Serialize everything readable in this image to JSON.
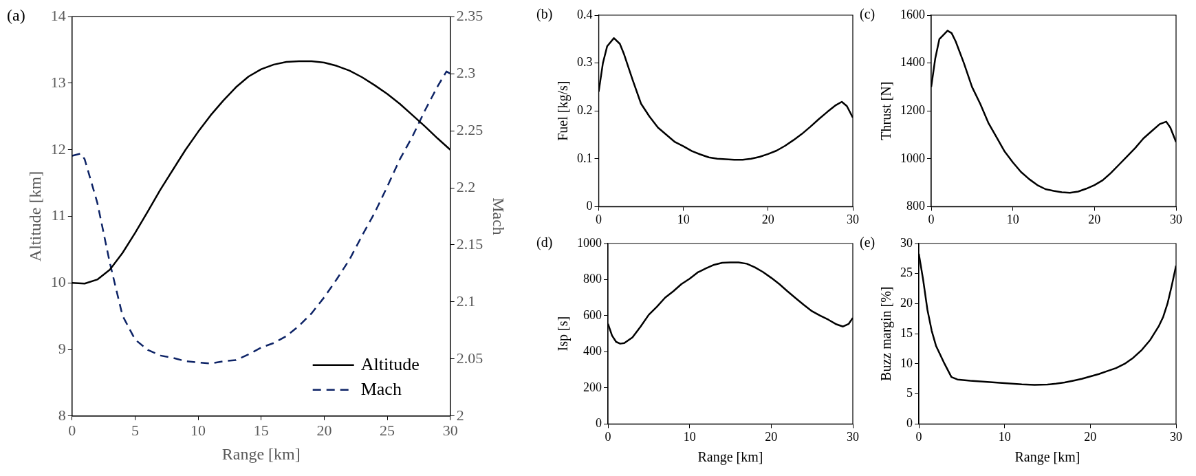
{
  "chart_data": [
    {
      "type": "line",
      "title": "(a)",
      "xlabel": "Range [km]",
      "ylabel": "Altitude [km]",
      "y2label": "Mach",
      "xlim": [
        0,
        30
      ],
      "xticks": [
        0,
        5,
        10,
        15,
        20,
        25,
        30
      ],
      "ylim": [
        8,
        14
      ],
      "yticks": [
        8,
        9,
        10,
        11,
        12,
        13,
        14
      ],
      "y2lim": [
        2,
        2.35
      ],
      "y2ticks": [
        2,
        2.05,
        2.1,
        2.15,
        2.2,
        2.25,
        2.3,
        2.35
      ],
      "legend": "bottom right",
      "marker": "none",
      "grid": false,
      "series": [
        {
          "name": "Altitude",
          "color": "#000000",
          "line_style": "solid",
          "x": [
            0,
            1,
            2,
            3,
            4,
            5,
            6,
            7,
            8,
            9,
            10,
            11,
            12,
            13,
            14,
            15,
            16,
            17,
            18,
            19,
            20,
            21,
            22,
            23,
            24,
            25,
            26,
            27,
            28,
            29,
            30
          ],
          "values": [
            10.0,
            9.99,
            10.05,
            10.2,
            10.45,
            10.75,
            11.07,
            11.4,
            11.7,
            12.0,
            12.27,
            12.52,
            12.74,
            12.94,
            13.1,
            13.21,
            13.28,
            13.32,
            13.33,
            13.33,
            13.31,
            13.26,
            13.19,
            13.09,
            12.97,
            12.84,
            12.69,
            12.52,
            12.35,
            12.17,
            12.0
          ]
        },
        {
          "name": "Mach",
          "color": "#0d2366",
          "line_style": "dashed",
          "axis": "y2",
          "x": [
            0,
            0.7,
            1,
            2,
            3,
            4,
            5,
            6,
            7,
            8,
            9,
            10,
            11,
            12,
            13,
            14,
            15,
            16,
            17,
            18,
            19,
            20,
            21,
            22,
            23,
            24,
            25,
            26,
            27,
            28,
            29,
            29.7,
            30
          ],
          "values": [
            2.228,
            2.23,
            2.225,
            2.187,
            2.134,
            2.088,
            2.067,
            2.058,
            2.053,
            2.051,
            2.048,
            2.047,
            2.046,
            2.048,
            2.049,
            2.054,
            2.06,
            2.064,
            2.07,
            2.079,
            2.09,
            2.104,
            2.12,
            2.137,
            2.158,
            2.178,
            2.201,
            2.225,
            2.245,
            2.268,
            2.289,
            2.302,
            2.3
          ]
        }
      ]
    },
    {
      "type": "line",
      "title": "(b)",
      "ylabel": "Fuel [kg/s]",
      "xlim": [
        0,
        30
      ],
      "xticks": [
        0,
        10,
        20,
        30
      ],
      "ylim": [
        0,
        0.4
      ],
      "yticks": [
        0,
        0.1,
        0.2,
        0.3,
        0.4
      ],
      "marker": "none",
      "grid": false,
      "series": [
        {
          "color": "#000000",
          "x": [
            0,
            0.5,
            1,
            1.8,
            2.5,
            3,
            4,
            5,
            6,
            7,
            8,
            9,
            10,
            11,
            12,
            13,
            14,
            15,
            16,
            17,
            18,
            19,
            20,
            21,
            22,
            23,
            24,
            25,
            26,
            27,
            28,
            28.7,
            29.3,
            30
          ],
          "values": [
            0.24,
            0.3,
            0.335,
            0.352,
            0.34,
            0.318,
            0.265,
            0.215,
            0.188,
            0.165,
            0.15,
            0.135,
            0.126,
            0.116,
            0.109,
            0.103,
            0.1,
            0.099,
            0.098,
            0.098,
            0.1,
            0.104,
            0.11,
            0.117,
            0.127,
            0.139,
            0.152,
            0.167,
            0.183,
            0.198,
            0.212,
            0.219,
            0.21,
            0.186
          ]
        }
      ]
    },
    {
      "type": "line",
      "title": "(c)",
      "ylabel": "Thrust [N]",
      "xlim": [
        0,
        30
      ],
      "xticks": [
        0,
        10,
        20,
        30
      ],
      "ylim": [
        800,
        1600
      ],
      "yticks": [
        800,
        1000,
        1200,
        1400,
        1600
      ],
      "marker": "none",
      "grid": false,
      "series": [
        {
          "color": "#000000",
          "x": [
            0,
            0.5,
            1,
            2,
            2.5,
            3,
            4,
            5,
            6,
            7,
            8,
            9,
            10,
            11,
            12,
            13,
            14,
            15,
            16,
            17,
            18,
            19,
            20,
            21,
            22,
            23,
            24,
            25,
            26,
            27,
            28,
            28.8,
            29.3,
            30
          ],
          "values": [
            1300,
            1420,
            1500,
            1535,
            1525,
            1490,
            1400,
            1300,
            1230,
            1150,
            1090,
            1030,
            985,
            945,
            915,
            890,
            873,
            866,
            860,
            858,
            863,
            875,
            890,
            910,
            940,
            975,
            1010,
            1045,
            1085,
            1115,
            1145,
            1155,
            1130,
            1070
          ]
        }
      ]
    },
    {
      "type": "line",
      "title": "(d)",
      "xlabel": "Range [km]",
      "ylabel": "Isp [s]",
      "xlim": [
        0,
        30
      ],
      "xticks": [
        0,
        10,
        20,
        30
      ],
      "ylim": [
        0,
        1000
      ],
      "yticks": [
        0,
        200,
        400,
        600,
        800,
        1000
      ],
      "marker": "none",
      "grid": false,
      "series": [
        {
          "color": "#000000",
          "x": [
            0,
            0.5,
            1,
            1.5,
            2,
            3,
            4,
            5,
            6,
            7,
            8,
            9,
            10,
            11,
            12,
            13,
            14,
            15,
            16,
            17,
            18,
            19,
            20,
            21,
            22,
            23,
            24,
            25,
            26,
            27,
            28,
            28.8,
            29.5,
            30
          ],
          "values": [
            555,
            490,
            455,
            445,
            448,
            480,
            540,
            605,
            650,
            700,
            735,
            775,
            805,
            840,
            862,
            882,
            893,
            895,
            895,
            888,
            868,
            842,
            810,
            775,
            735,
            697,
            660,
            625,
            600,
            578,
            552,
            540,
            555,
            588
          ]
        }
      ]
    },
    {
      "type": "line",
      "title": "(e)",
      "xlabel": "Range [km]",
      "ylabel": "Buzz margin [%]",
      "xlim": [
        0,
        30
      ],
      "xticks": [
        0,
        10,
        20,
        30
      ],
      "ylim": [
        0,
        30
      ],
      "yticks": [
        0,
        5,
        10,
        15,
        20,
        25,
        30
      ],
      "marker": "none",
      "grid": false,
      "series": [
        {
          "color": "#000000",
          "x": [
            0,
            0.5,
            1,
            1.5,
            2,
            3,
            3.8,
            4.5,
            6,
            8,
            10,
            12,
            13.5,
            15,
            16,
            17,
            18,
            19,
            20,
            21,
            22,
            23,
            24,
            25,
            26,
            27,
            28,
            28.5,
            29,
            29.5,
            30
          ],
          "values": [
            28.3,
            24,
            19,
            15.5,
            13,
            10,
            7.8,
            7.4,
            7.2,
            7.0,
            6.8,
            6.6,
            6.5,
            6.55,
            6.7,
            6.9,
            7.2,
            7.5,
            7.9,
            8.3,
            8.8,
            9.3,
            10.0,
            11,
            12.3,
            14.0,
            16.3,
            17.8,
            20,
            23,
            26.3
          ]
        }
      ]
    }
  ]
}
